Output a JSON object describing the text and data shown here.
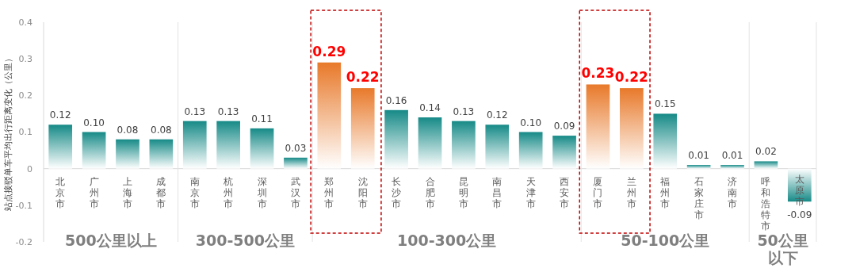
{
  "chart_data": {
    "type": "bar",
    "ylabel": "站点接驳单车平均出行距离变化（公里）",
    "categories": [
      "北京市",
      "广州市",
      "上海市",
      "成都市",
      "南京市",
      "杭州市",
      "深圳市",
      "武汉市",
      "郑州市",
      "沈阳市",
      "长沙市",
      "合肥市",
      "昆明市",
      "南昌市",
      "天津市",
      "西安市",
      "厦门市",
      "兰州市",
      "福州市",
      "石家庄市",
      "济南市",
      "呼和浩特市",
      "太原市"
    ],
    "values": [
      0.12,
      0.1,
      0.08,
      0.08,
      0.13,
      0.13,
      0.11,
      0.03,
      0.29,
      0.22,
      0.16,
      0.14,
      0.13,
      0.12,
      0.1,
      0.09,
      0.23,
      0.22,
      0.15,
      0.01,
      0.01,
      0.02,
      -0.09
    ],
    "color": "#168a87",
    "colors": [
      "#168a87",
      "#168a87",
      "#168a87",
      "#168a87",
      "#168a87",
      "#168a87",
      "#168a87",
      "#168a87",
      "#e8792a",
      "#e8792a",
      "#168a87",
      "#168a87",
      "#168a87",
      "#168a87",
      "#168a87",
      "#168a87",
      "#e8792a",
      "#e8792a",
      "#168a87",
      "#168a87",
      "#168a87",
      "#168a87",
      "#168a87"
    ],
    "ylim": [
      -0.2,
      0.4
    ],
    "yticks": [
      -0.2,
      -0.1,
      0,
      0.1,
      0.2,
      0.3,
      0.4
    ],
    "value_labels": [
      "0.12",
      "0.10",
      "0.08",
      "0.08",
      "0.13",
      "0.13",
      "0.11",
      "0.03",
      "0.29",
      "0.22",
      "0.16",
      "0.14",
      "0.13",
      "0.12",
      "0.10",
      "0.09",
      "0.23",
      "0.22",
      "0.15",
      "0.01",
      "0.01",
      "0.02",
      "-0.09"
    ],
    "annotations": [
      "500公里以上",
      "300-500公里",
      "100-300公里",
      "50-100公里",
      "50公里以下"
    ]
  }
}
